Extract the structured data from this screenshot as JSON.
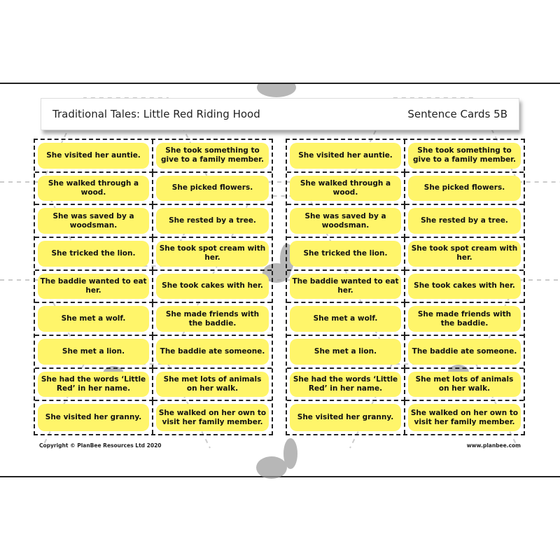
{
  "header": {
    "title": "Traditional Tales: Little Red Riding Hood",
    "subtitle": "Sentence Cards 5B"
  },
  "colors": {
    "card": "#fff56a",
    "border": "#222222"
  },
  "cards": [
    "She visited her auntie.",
    "She took something to give to a family member.",
    "She walked through a wood.",
    "She picked flowers.",
    "She was saved by a woodsman.",
    "She rested by a tree.",
    "She tricked the lion.",
    "She took spot cream with her.",
    "The baddie wanted to eat her.",
    "She took cakes with her.",
    "She met a wolf.",
    "She made friends with the baddie.",
    "She met a lion.",
    "The baddie ate someone.",
    "She had the words ‘Little Red’ in her name.",
    "She met lots of animals on her walk.",
    "She visited her granny.",
    "She walked on her own to visit her family member."
  ],
  "footer": {
    "copyright": "Copyright © PlanBee Resources Ltd 2020",
    "website": "www.planbee.com"
  }
}
